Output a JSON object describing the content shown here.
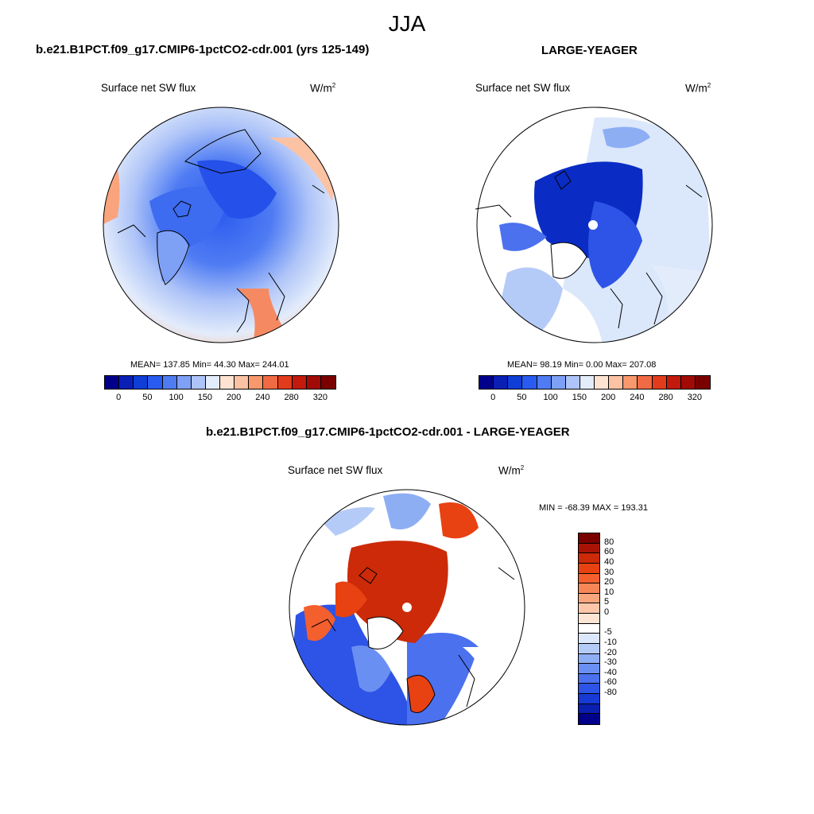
{
  "season": "JJA",
  "panel1": {
    "title": "b.e21.B1PCT.f09_g17.CMIP6-1pctCO2-cdr.001 (yrs 125-149)",
    "var": "Surface net SW flux",
    "units": "W/m",
    "units_sup": "2",
    "stats": "MEAN= 137.85  Min=  44.30  Max= 244.01"
  },
  "panel2": {
    "title": "LARGE-YEAGER",
    "var": "Surface net SW flux",
    "units": "W/m",
    "units_sup": "2",
    "stats": "MEAN=  98.19  Min=   0.00  Max= 207.08"
  },
  "panel3": {
    "title": "b.e21.B1PCT.f09_g17.CMIP6-1pctCO2-cdr.001 - LARGE-YEAGER",
    "var": "Surface net SW flux",
    "units": "W/m",
    "units_sup": "2",
    "stats": "MIN = -68.39 MAX = 193.31"
  },
  "colorbar_h": {
    "colors": [
      "#00008b",
      "#0a1fb4",
      "#0f3ed6",
      "#2a5bf0",
      "#4f7cf3",
      "#7ea0f5",
      "#aec4f8",
      "#e3ecfb",
      "#fde3d2",
      "#fcc2a4",
      "#f9976d",
      "#f06a43",
      "#e33c1c",
      "#c21a0c",
      "#a20a06",
      "#7a0000"
    ],
    "labels": [
      "0",
      "50",
      "100",
      "150",
      "200",
      "240",
      "280",
      "320"
    ]
  },
  "colorbar_v": {
    "colors": [
      "#7a0000",
      "#a81306",
      "#cc2a08",
      "#e84112",
      "#f45f2e",
      "#f78657",
      "#faa67d",
      "#fcc8a9",
      "#fde5d4",
      "#ffffff",
      "#dbe7fb",
      "#b5cbf7",
      "#8eaef4",
      "#6a8ff2",
      "#4b71ee",
      "#2d54e6",
      "#163ad3",
      "#0a1fad",
      "#00008b"
    ],
    "labels": [
      "80",
      "60",
      "40",
      "30",
      "20",
      "10",
      "5",
      "0",
      "-5",
      "-10",
      "-20",
      "-30",
      "-40",
      "-60",
      "-80"
    ]
  }
}
